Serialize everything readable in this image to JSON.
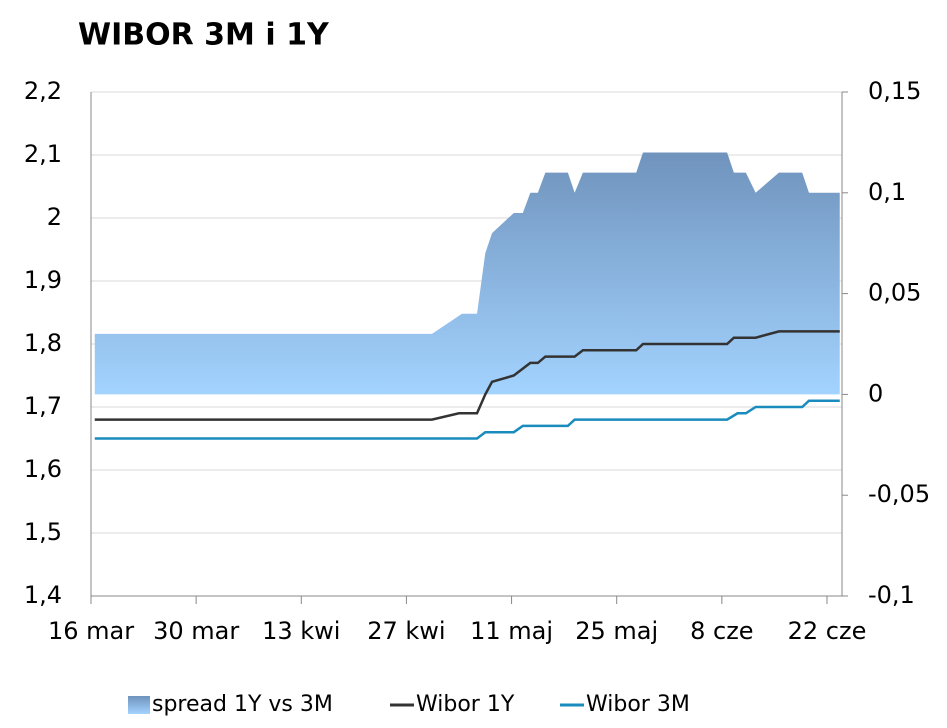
{
  "chart_data": {
    "type": "line",
    "title": "WIBOR 3M i 1Y",
    "xlim": [
      0,
      100
    ],
    "xticks": [
      {
        "value": 0,
        "label": "16 mar"
      },
      {
        "value": 14,
        "label": "30 mar"
      },
      {
        "value": 28,
        "label": "13 kwi"
      },
      {
        "value": 42,
        "label": "27 kwi"
      },
      {
        "value": 56,
        "label": "11 maj"
      },
      {
        "value": 70,
        "label": "25 maj"
      },
      {
        "value": 84,
        "label": "8 cze"
      },
      {
        "value": 98,
        "label": "22 cze"
      }
    ],
    "ylim": [
      1.4,
      2.2
    ],
    "yticks": [
      {
        "value": 1.4,
        "label": "1,4"
      },
      {
        "value": 1.5,
        "label": "1,5"
      },
      {
        "value": 1.6,
        "label": "1,6"
      },
      {
        "value": 1.7,
        "label": "1,7"
      },
      {
        "value": 1.8,
        "label": "1,8"
      },
      {
        "value": 1.9,
        "label": "1,9"
      },
      2,
      {
        "value": 2.1,
        "label": "2,1"
      },
      {
        "value": 2.2,
        "label": "2,2"
      }
    ],
    "y2lim": [
      -0.1,
      0.15
    ],
    "y2ticks": [
      {
        "value": -0.1,
        "label": "-0,1"
      },
      {
        "value": -0.05,
        "label": "-0,05"
      },
      0,
      {
        "value": 0.05,
        "label": "0,05"
      },
      {
        "value": 0.1,
        "label": "0,1"
      },
      {
        "value": 0.15,
        "label": "0,15"
      }
    ],
    "grid": true,
    "legend": "bottom",
    "series": [
      {
        "name": "spread 1Y vs 3M",
        "type": "area",
        "axis": "y2",
        "color": "#6f93bc",
        "x": [
          0.5,
          45.4,
          49.4,
          51.4,
          52.5,
          53.4,
          56.3,
          57.5,
          58.5,
          59.5,
          60.5,
          63.5,
          64.4,
          65.5,
          72.6,
          73.5,
          84.7,
          85.6,
          87.2,
          88.5,
          91.6,
          94.7,
          95.6,
          99.7
        ],
        "values": [
          0.03,
          0.03,
          0.04,
          0.04,
          0.07,
          0.08,
          0.09,
          0.09,
          0.1,
          0.1,
          0.11,
          0.11,
          0.1,
          0.11,
          0.11,
          0.12,
          0.12,
          0.11,
          0.11,
          0.1,
          0.11,
          0.11,
          0.1,
          0.1
        ]
      },
      {
        "name": "Wibor 1Y",
        "type": "line",
        "color": "#333333",
        "x": [
          0.5,
          45.4,
          49,
          51.4,
          52.5,
          53.4,
          56.3,
          58.5,
          59.5,
          60.5,
          64.4,
          65.5,
          72.6,
          73.5,
          84.7,
          85.6,
          88.5,
          91.6,
          99.7
        ],
        "values": [
          1.68,
          1.68,
          1.69,
          1.69,
          1.72,
          1.74,
          1.75,
          1.77,
          1.77,
          1.78,
          1.78,
          1.79,
          1.79,
          1.8,
          1.8,
          1.81,
          1.81,
          1.82,
          1.82
        ]
      },
      {
        "name": "Wibor 3M",
        "type": "line",
        "color": "#1a8bbd",
        "x": [
          0.5,
          51.4,
          52.5,
          56.3,
          57.5,
          63.5,
          64.4,
          84.7,
          86.1,
          87.2,
          88.5,
          94.7,
          95.6,
          99.7
        ],
        "values": [
          1.65,
          1.65,
          1.66,
          1.66,
          1.67,
          1.67,
          1.68,
          1.68,
          1.69,
          1.69,
          1.7,
          1.7,
          1.71,
          1.71
        ]
      }
    ]
  }
}
